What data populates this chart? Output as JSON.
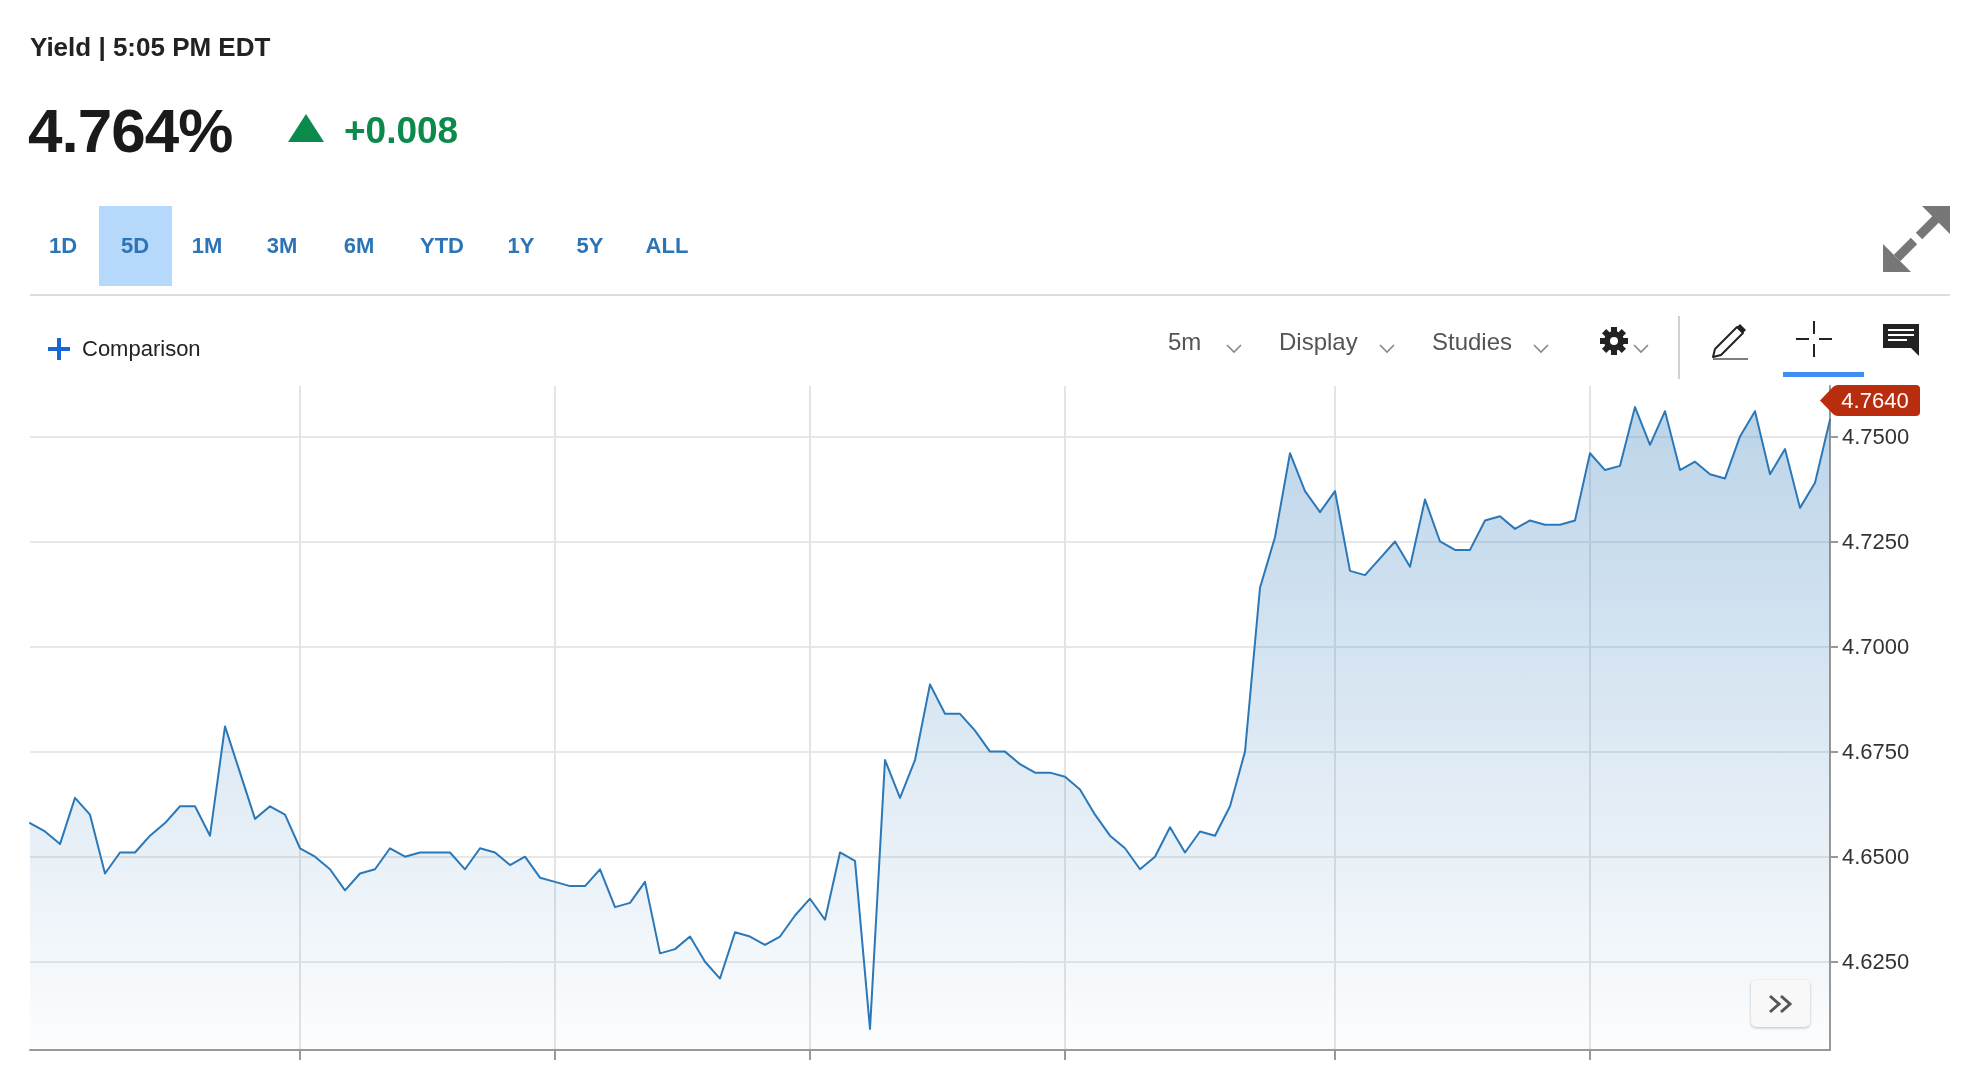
{
  "chart_data": {
    "type": "area",
    "title": "Yield | 5:05 PM EDT",
    "subtitle": "4.764%",
    "annotations": [
      "+0.008",
      "1D",
      "5D",
      "1M",
      "3M",
      "6M",
      "YTD",
      "1Y",
      "5Y",
      "ALL",
      "Comparison",
      "5m",
      "Display",
      "Studies",
      "4.7640"
    ],
    "categories": [
      null,
      null,
      null,
      null,
      null,
      null,
      null,
      null,
      null,
      null,
      null,
      null,
      null,
      null,
      null,
      null,
      null,
      null,
      null,
      null,
      null,
      null,
      null,
      null,
      null,
      null,
      null,
      null,
      null,
      null,
      null,
      null,
      null,
      null,
      null,
      null,
      null,
      null,
      null,
      null,
      null,
      null,
      null,
      null,
      null,
      null,
      null,
      null,
      null,
      null,
      null,
      null,
      null,
      null,
      null,
      null,
      null,
      null,
      null,
      null,
      null,
      null,
      null,
      null,
      null,
      null,
      null,
      null,
      null,
      null,
      null,
      null,
      null,
      null,
      null,
      null,
      null,
      null,
      null,
      null,
      null,
      null,
      null,
      null,
      null,
      null,
      null,
      null,
      null,
      null,
      null,
      null,
      null,
      null,
      null,
      null,
      null,
      null,
      null,
      null,
      null,
      null,
      null,
      null,
      null,
      null,
      null,
      null,
      null,
      null,
      null,
      null,
      null,
      null,
      null,
      null,
      null,
      null,
      null,
      null,
      null
    ],
    "values": [
      4.658,
      4.656,
      4.653,
      4.664,
      4.66,
      4.646,
      4.651,
      4.651,
      4.655,
      4.658,
      4.662,
      4.662,
      4.655,
      4.681,
      4.67,
      4.659,
      4.662,
      4.66,
      4.652,
      4.65,
      4.647,
      4.642,
      4.646,
      4.647,
      4.652,
      4.65,
      4.651,
      4.651,
      4.651,
      4.647,
      4.652,
      4.651,
      4.648,
      4.65,
      4.645,
      4.644,
      4.643,
      4.643,
      4.647,
      4.638,
      4.639,
      4.644,
      4.627,
      4.628,
      4.631,
      4.625,
      4.621,
      4.632,
      4.631,
      4.629,
      4.631,
      4.636,
      4.64,
      4.635,
      4.651,
      4.649,
      4.609,
      4.673,
      4.664,
      4.673,
      4.691,
      4.684,
      4.684,
      4.68,
      4.675,
      4.675,
      4.672,
      4.67,
      4.67,
      4.669,
      4.666,
      4.66,
      4.655,
      4.652,
      4.647,
      4.65,
      4.657,
      4.651,
      4.656,
      4.655,
      4.662,
      4.675,
      4.714,
      4.726,
      4.746,
      4.737,
      4.732,
      4.737,
      4.718,
      4.717,
      4.721,
      4.725,
      4.719,
      4.735,
      4.725,
      4.723,
      4.723,
      4.73,
      4.731,
      4.728,
      4.73,
      4.729,
      4.729,
      4.73,
      4.746,
      4.742,
      4.743,
      4.757,
      4.748,
      4.756,
      4.742,
      4.744,
      4.741,
      4.74,
      4.75,
      4.756,
      4.741,
      4.747,
      4.733,
      4.739,
      4.754
    ],
    "color": "#2b78b9",
    "ylim": [
      4.604,
      4.762
    ],
    "yticks": [
      {
        "value": 4.625,
        "label": "4.6250"
      },
      {
        "value": 4.65,
        "label": "4.6500"
      },
      {
        "value": 4.675,
        "label": "4.6750"
      },
      {
        "value": 4.7,
        "label": "4.7000"
      },
      {
        "value": 4.725,
        "label": "4.7250"
      },
      {
        "value": 4.75,
        "label": "4.7500"
      }
    ],
    "grid": true,
    "tick_labels": "y"
  }
}
